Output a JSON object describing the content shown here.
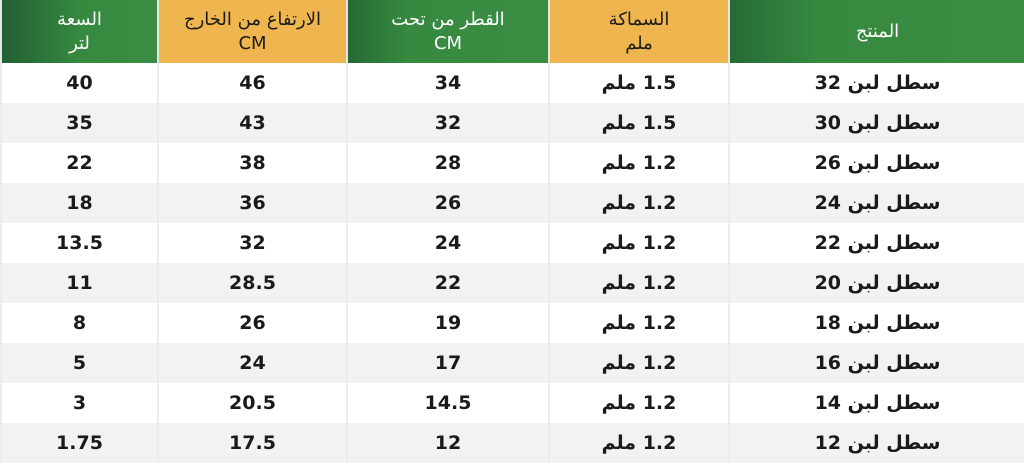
{
  "headers": [
    {
      "line1": "المنتج",
      "line2": ""
    },
    {
      "line1": "السماكة",
      "line2": "ملم"
    },
    {
      "line1": "القطر من تحت",
      "line2": "CM"
    },
    {
      "line1": "الارتفاع من الخارج",
      "line2": "CM"
    },
    {
      "line1": "السعة",
      "line2": "لتر"
    }
  ],
  "colors": {
    "green": "#3a8d43",
    "orange": "#efb54e",
    "alt_row": "#f2f2f2"
  },
  "rows": [
    [
      "سطل لبن 32",
      "1.5 ملم",
      "34",
      "46",
      "40"
    ],
    [
      "سطل لبن 30",
      "1.5 ملم",
      "32",
      "43",
      "35"
    ],
    [
      "سطل لبن 26",
      "1.2 ملم",
      "28",
      "38",
      "22"
    ],
    [
      "سطل لبن 24",
      "1.2 ملم",
      "26",
      "36",
      "18"
    ],
    [
      "سطل لبن 22",
      "1.2 ملم",
      "24",
      "32",
      "13.5"
    ],
    [
      "سطل لبن 20",
      "1.2 ملم",
      "22",
      "28.5",
      "11"
    ],
    [
      "سطل لبن 18",
      "1.2 ملم",
      "19",
      "26",
      "8"
    ],
    [
      "سطل لبن 16",
      "1.2 ملم",
      "17",
      "24",
      "5"
    ],
    [
      "سطل لبن 14",
      "1.2 ملم",
      "14.5",
      "20.5",
      "3"
    ],
    [
      "سطل لبن 12",
      "1.2 ملم",
      "12",
      "17.5",
      "1.75"
    ]
  ]
}
